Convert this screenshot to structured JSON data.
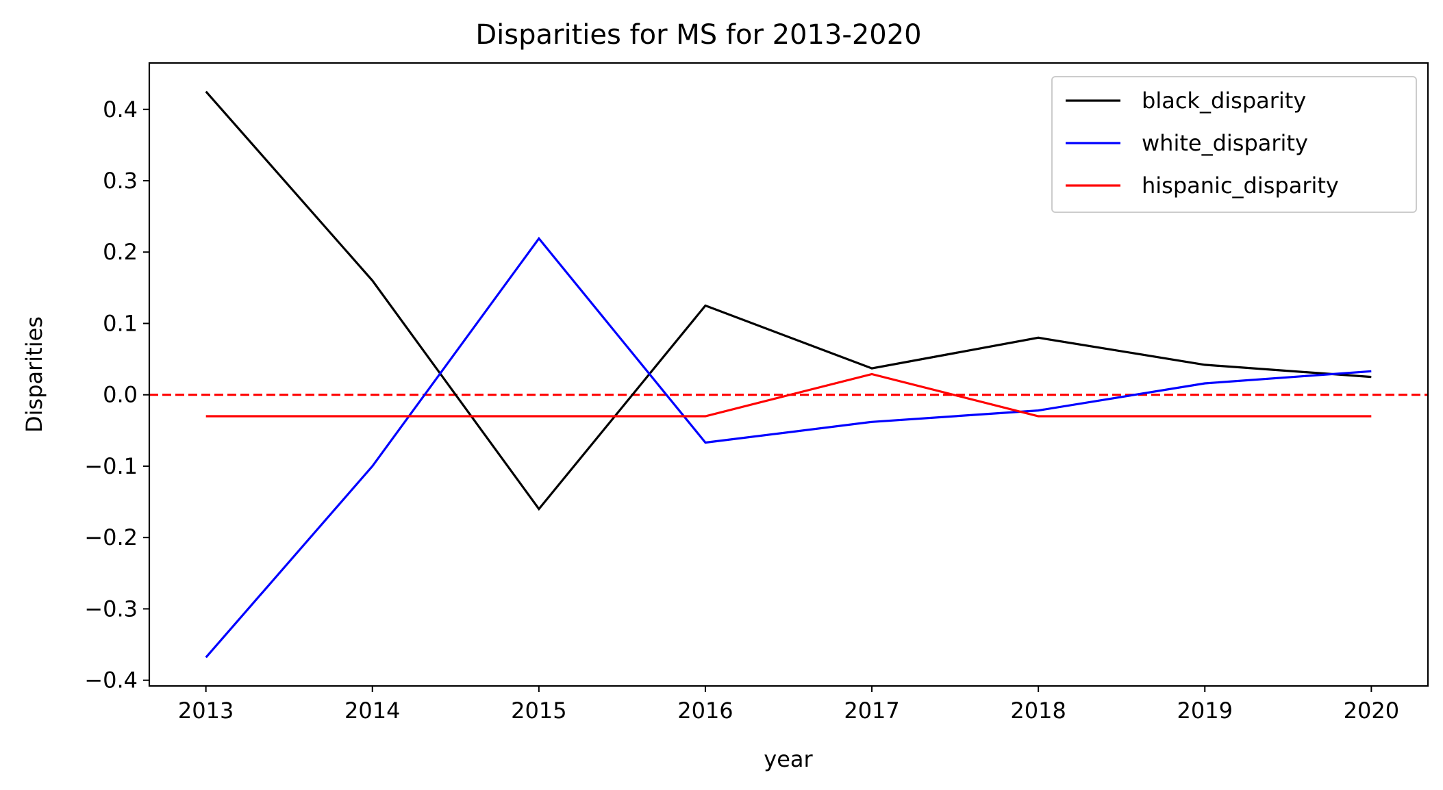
{
  "chart_data": {
    "type": "line",
    "title": "Disparities for MS for 2013-2020",
    "xlabel": "year",
    "ylabel": "Disparities",
    "x": [
      2013,
      2014,
      2015,
      2016,
      2017,
      2018,
      2019,
      2020
    ],
    "xlim": [
      2012.66,
      2020.34
    ],
    "ylim": [
      -0.408,
      0.465
    ],
    "x_ticks": [
      "2013",
      "2014",
      "2015",
      "2016",
      "2017",
      "2018",
      "2019",
      "2020"
    ],
    "y_ticks": [
      {
        "value": 0.4,
        "label": "0.4"
      },
      {
        "value": 0.3,
        "label": "0.3"
      },
      {
        "value": 0.2,
        "label": "0.2"
      },
      {
        "value": 0.1,
        "label": "0.1"
      },
      {
        "value": 0.0,
        "label": "0.0"
      },
      {
        "value": -0.1,
        "label": "−0.1"
      },
      {
        "value": -0.2,
        "label": "−0.2"
      },
      {
        "value": -0.3,
        "label": "−0.3"
      },
      {
        "value": -0.4,
        "label": "−0.4"
      }
    ],
    "series": [
      {
        "name": "black_disparity",
        "color": "#000000",
        "values": [
          0.425,
          0.16,
          -0.16,
          0.125,
          0.037,
          0.08,
          0.042,
          0.025
        ]
      },
      {
        "name": "white_disparity",
        "color": "#0000ff",
        "values": [
          -0.368,
          -0.1,
          0.219,
          -0.067,
          -0.038,
          -0.022,
          0.016,
          0.033
        ]
      },
      {
        "name": "hispanic_disparity",
        "color": "#ff0000",
        "values": [
          -0.03,
          -0.03,
          -0.03,
          -0.03,
          0.029,
          -0.03,
          -0.03,
          -0.03
        ]
      }
    ],
    "reference_line": {
      "y": 0.0,
      "color": "#ff0000",
      "style": "dashed"
    },
    "legend_position": "top-right",
    "grid": false
  }
}
